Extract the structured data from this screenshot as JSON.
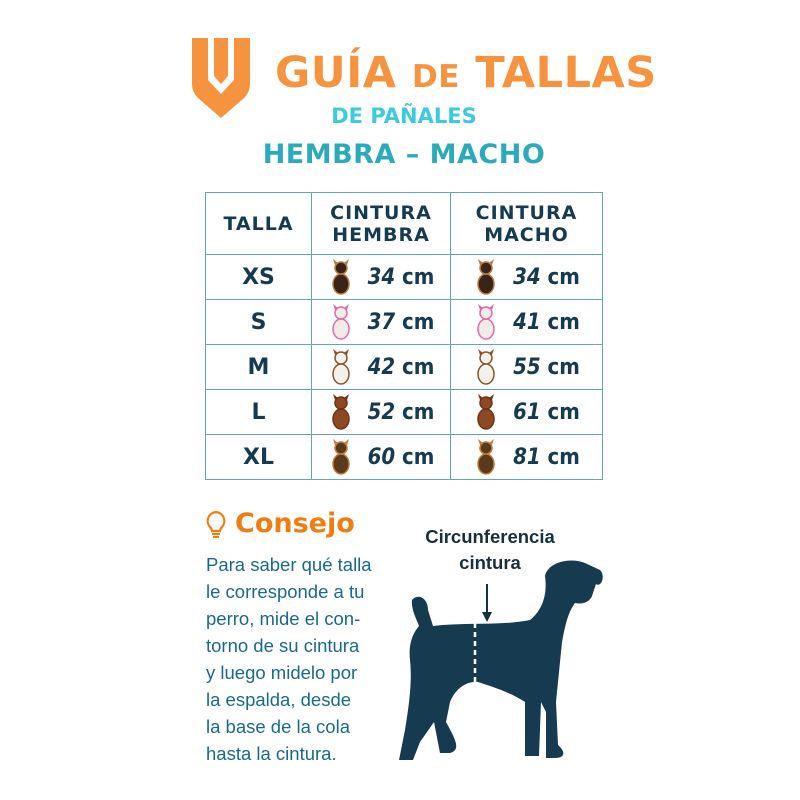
{
  "header": {
    "logo_icon": "orange-shield-v-logo-icon",
    "title_part1": "GUÍA",
    "title_part2": "DE",
    "title_part3": "TALLAS",
    "subtitle": "DE PAÑALES",
    "genders": "HEMBRA – MACHO"
  },
  "colors": {
    "orange": "#f5933f",
    "cyan": "#3ccbdc",
    "teal": "#2aaabb",
    "navy": "#163a4f",
    "border": "#5fa9b1"
  },
  "table": {
    "headers": [
      "TALLA",
      "CINTURA HEMBRA",
      "CINTURA MACHO"
    ],
    "header_lines": {
      "h1": "CINTURA",
      "h2": "HEMBRA",
      "m1": "CINTURA",
      "m2": "MACHO"
    },
    "rows": [
      {
        "size": "XS",
        "female": "34",
        "male": "34",
        "unit": "cm",
        "dog_icon": "chihuahua-dog-icon"
      },
      {
        "size": "S",
        "female": "37",
        "male": "41",
        "unit": "cm",
        "dog_icon": "maltese-dog-icon"
      },
      {
        "size": "M",
        "female": "42",
        "male": "55",
        "unit": "cm",
        "dog_icon": "beagle-dog-icon"
      },
      {
        "size": "L",
        "female": "52",
        "male": "61",
        "unit": "cm",
        "dog_icon": "cocker-spaniel-dog-icon"
      },
      {
        "size": "XL",
        "female": "60",
        "male": "81",
        "unit": "cm",
        "dog_icon": "german-shepherd-dog-icon"
      }
    ]
  },
  "tip": {
    "icon": "lightbulb-icon",
    "title": "Consejo",
    "lines": [
      "Para saber qué talla",
      "le corresponde a tu",
      "perro, mide el con-",
      "torno de su cintura",
      "y luego midelo por",
      "la espalda, desde",
      "la base de la cola",
      "hasta la cintura."
    ]
  },
  "diagram": {
    "label_line1": "Circunferencia",
    "label_line2": "cintura",
    "icon": "dog-silhouette-icon"
  }
}
